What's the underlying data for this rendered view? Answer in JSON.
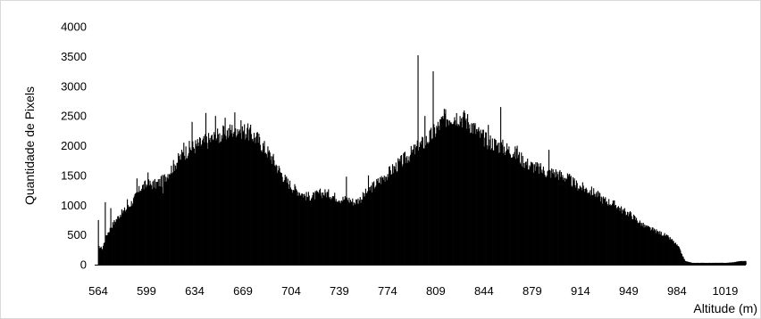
{
  "chart_data": {
    "type": "bar",
    "title": "",
    "xlabel": "Altitude (m)",
    "ylabel": "Quantidade de Pixels",
    "ylim": [
      0,
      4000
    ],
    "xlim": [
      564,
      1034
    ],
    "y_ticks": [
      "0",
      "500",
      "1000",
      "1500",
      "2000",
      "2500",
      "3000",
      "3500",
      "4000"
    ],
    "x_ticks": [
      "564",
      "599",
      "634",
      "669",
      "704",
      "739",
      "774",
      "809",
      "844",
      "879",
      "914",
      "949",
      "984",
      "1019"
    ],
    "grid": false,
    "legend": "none",
    "bar_color": "#000000",
    "profile_knots": [
      [
        564,
        300
      ],
      [
        567,
        280
      ],
      [
        570,
        500
      ],
      [
        575,
        700
      ],
      [
        580,
        850
      ],
      [
        585,
        950
      ],
      [
        590,
        1100
      ],
      [
        595,
        1300
      ],
      [
        600,
        1350
      ],
      [
        605,
        1350
      ],
      [
        610,
        1400
      ],
      [
        615,
        1550
      ],
      [
        620,
        1700
      ],
      [
        625,
        1850
      ],
      [
        630,
        1950
      ],
      [
        635,
        2000
      ],
      [
        640,
        2050
      ],
      [
        645,
        2100
      ],
      [
        650,
        2150
      ],
      [
        655,
        2200
      ],
      [
        660,
        2250
      ],
      [
        665,
        2300
      ],
      [
        670,
        2250
      ],
      [
        675,
        2200
      ],
      [
        680,
        2100
      ],
      [
        685,
        1950
      ],
      [
        690,
        1800
      ],
      [
        695,
        1600
      ],
      [
        700,
        1420
      ],
      [
        705,
        1300
      ],
      [
        710,
        1220
      ],
      [
        715,
        1150
      ],
      [
        720,
        1150
      ],
      [
        725,
        1200
      ],
      [
        730,
        1200
      ],
      [
        735,
        1150
      ],
      [
        740,
        1100
      ],
      [
        745,
        1100
      ],
      [
        750,
        1050
      ],
      [
        755,
        1120
      ],
      [
        760,
        1250
      ],
      [
        765,
        1350
      ],
      [
        770,
        1450
      ],
      [
        775,
        1550
      ],
      [
        780,
        1650
      ],
      [
        785,
        1750
      ],
      [
        790,
        1850
      ],
      [
        795,
        1950
      ],
      [
        800,
        2050
      ],
      [
        805,
        2150
      ],
      [
        810,
        2300
      ],
      [
        815,
        2450
      ],
      [
        820,
        2500
      ],
      [
        825,
        2500
      ],
      [
        830,
        2450
      ],
      [
        835,
        2350
      ],
      [
        840,
        2200
      ],
      [
        845,
        2100
      ],
      [
        850,
        2050
      ],
      [
        855,
        2000
      ],
      [
        860,
        1950
      ],
      [
        865,
        1900
      ],
      [
        870,
        1800
      ],
      [
        875,
        1700
      ],
      [
        880,
        1650
      ],
      [
        885,
        1600
      ],
      [
        890,
        1550
      ],
      [
        895,
        1550
      ],
      [
        900,
        1500
      ],
      [
        905,
        1450
      ],
      [
        910,
        1350
      ],
      [
        915,
        1300
      ],
      [
        920,
        1250
      ],
      [
        925,
        1200
      ],
      [
        930,
        1100
      ],
      [
        935,
        1050
      ],
      [
        940,
        1000
      ],
      [
        945,
        900
      ],
      [
        950,
        850
      ],
      [
        955,
        750
      ],
      [
        960,
        650
      ],
      [
        965,
        600
      ],
      [
        970,
        550
      ],
      [
        975,
        500
      ],
      [
        980,
        420
      ],
      [
        985,
        300
      ],
      [
        988,
        150
      ],
      [
        990,
        60
      ],
      [
        995,
        30
      ],
      [
        1000,
        30
      ],
      [
        1005,
        30
      ],
      [
        1010,
        30
      ],
      [
        1015,
        30
      ],
      [
        1020,
        30
      ],
      [
        1025,
        40
      ],
      [
        1030,
        60
      ],
      [
        1034,
        60
      ]
    ],
    "spikes": [
      [
        564,
        750
      ],
      [
        567,
        250
      ],
      [
        569,
        1050
      ],
      [
        573,
        950
      ],
      [
        585,
        1100
      ],
      [
        592,
        1450
      ],
      [
        600,
        1550
      ],
      [
        611,
        1200
      ],
      [
        626,
        2050
      ],
      [
        632,
        2400
      ],
      [
        642,
        2550
      ],
      [
        649,
        2500
      ],
      [
        656,
        2470
      ],
      [
        663,
        2560
      ],
      [
        672,
        2300
      ],
      [
        744,
        1480
      ],
      [
        760,
        1500
      ],
      [
        796,
        3520
      ],
      [
        801,
        2500
      ],
      [
        807,
        3250
      ],
      [
        814,
        2500
      ],
      [
        830,
        2550
      ],
      [
        847,
        2350
      ],
      [
        856,
        2650
      ],
      [
        868,
        2000
      ],
      [
        891,
        1930
      ]
    ]
  }
}
